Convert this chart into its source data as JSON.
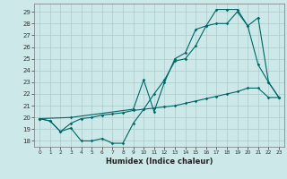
{
  "xlabel": "Humidex (Indice chaleur)",
  "background_color": "#cce8e8",
  "grid_color": "#aacccc",
  "line_color": "#006666",
  "xlim": [
    -0.5,
    23.5
  ],
  "ylim": [
    17.5,
    29.7
  ],
  "yticks": [
    18,
    19,
    20,
    21,
    22,
    23,
    24,
    25,
    26,
    27,
    28,
    29
  ],
  "xticks": [
    0,
    1,
    2,
    3,
    4,
    5,
    6,
    7,
    8,
    9,
    10,
    11,
    12,
    13,
    14,
    15,
    16,
    17,
    18,
    19,
    20,
    21,
    22,
    23
  ],
  "line1_x": [
    0,
    1,
    2,
    3,
    4,
    5,
    6,
    7,
    8,
    9,
    10,
    11,
    12,
    13,
    14,
    15,
    16,
    17,
    18,
    19,
    20,
    21,
    22,
    23
  ],
  "line1_y": [
    19.9,
    19.7,
    18.8,
    19.1,
    18.0,
    18.0,
    18.2,
    17.8,
    17.8,
    19.5,
    20.7,
    22.0,
    23.2,
    24.8,
    25.0,
    26.1,
    27.8,
    28.0,
    28.0,
    29.0,
    27.8,
    24.5,
    23.0,
    21.7
  ],
  "line2_x": [
    0,
    1,
    2,
    3,
    4,
    5,
    6,
    7,
    8,
    9,
    10,
    11,
    12,
    13,
    14,
    15,
    16,
    17,
    18,
    19,
    20,
    21,
    22,
    23
  ],
  "line2_y": [
    19.9,
    19.7,
    18.8,
    19.5,
    19.9,
    20.0,
    20.2,
    20.3,
    20.4,
    20.6,
    20.7,
    20.8,
    20.9,
    21.0,
    21.2,
    21.4,
    21.6,
    21.8,
    22.0,
    22.2,
    22.5,
    22.5,
    21.7,
    21.7
  ],
  "line3_x": [
    0,
    3,
    9,
    10,
    11,
    12,
    13,
    14,
    15,
    16,
    17,
    18,
    19,
    20,
    21,
    22,
    23
  ],
  "line3_y": [
    19.9,
    20.0,
    20.7,
    23.2,
    20.5,
    23.0,
    25.0,
    25.5,
    27.5,
    27.8,
    29.2,
    29.2,
    29.2,
    27.8,
    28.5,
    23.0,
    21.7
  ]
}
